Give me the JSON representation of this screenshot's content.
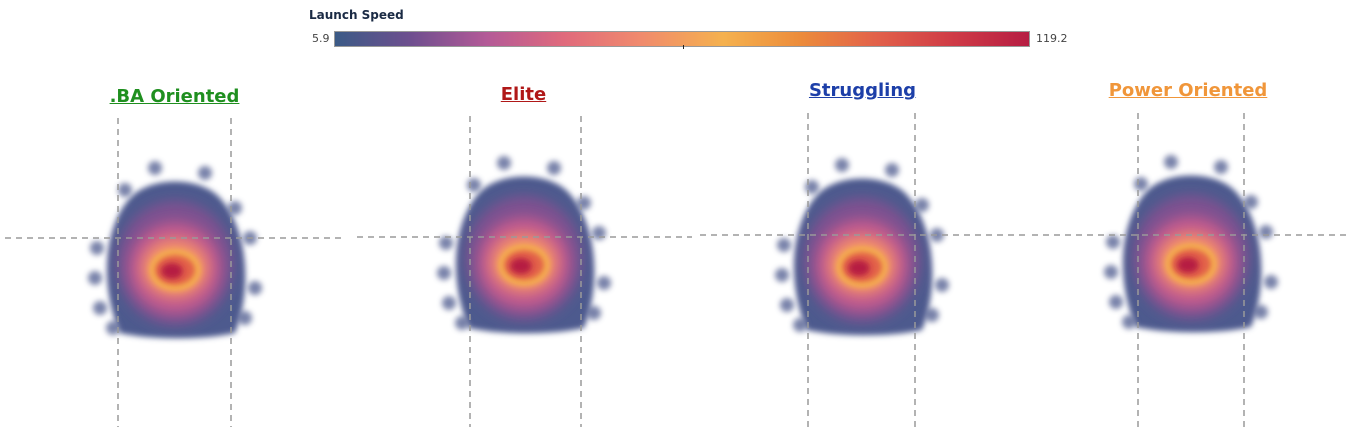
{
  "legend": {
    "title": "Launch Speed",
    "min_label": "5.9",
    "max_label": "119.2",
    "min": 5.9,
    "max": 119.2,
    "colors": [
      "#3b5a86",
      "#6f4f8f",
      "#b45a97",
      "#e06a7c",
      "#f08a6d",
      "#f5b14e",
      "#ec8c3b",
      "#e2614a",
      "#cf3b46",
      "#b61d43"
    ]
  },
  "chart_data": [
    {
      "type": "heatmap",
      "title": ".BA Oriented",
      "title_color": "#1f8f1f"
    },
    {
      "type": "heatmap",
      "title": "Elite",
      "title_color": "#b01818"
    },
    {
      "type": "heatmap",
      "title": "Struggling",
      "title_color": "#1d3fa8"
    },
    {
      "type": "heatmap",
      "title": "Power Oriented",
      "title_color": "#f0963a"
    }
  ]
}
